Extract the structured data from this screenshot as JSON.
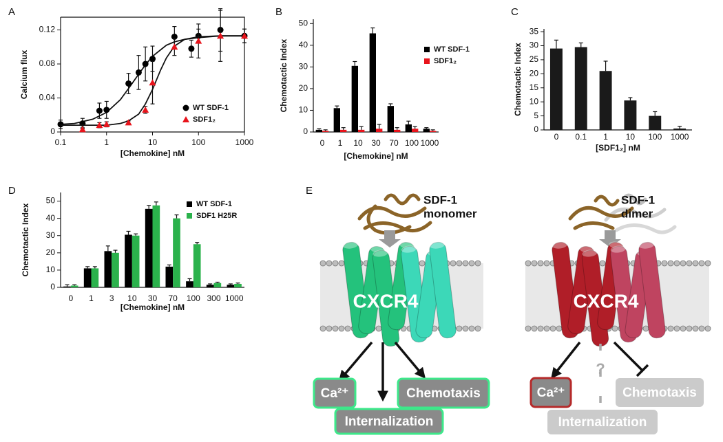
{
  "chart_data": [
    {
      "type": "scatter",
      "panel_label": "A",
      "y_label": "Calcium flux",
      "x_label": "[Chemokine] nM",
      "xscale": "log",
      "xlim": [
        0.1,
        1000
      ],
      "ylim": [
        0,
        0.135
      ],
      "xticks": [
        0.1,
        1,
        10,
        100,
        1000
      ],
      "yticks": [
        0,
        0.04,
        0.08,
        0.12
      ],
      "frame": true,
      "series": [
        {
          "name": "WT SDF-1",
          "color": "#000000",
          "marker": "circle",
          "x": [
            0.1,
            0.3,
            0.7,
            1,
            3,
            5,
            7,
            10,
            30,
            70,
            100,
            300,
            1000
          ],
          "values": [
            0.009,
            0.01,
            0.025,
            0.026,
            0.057,
            0.07,
            0.08,
            0.086,
            0.112,
            0.098,
            0.113,
            0.12,
            0.113
          ],
          "errors": [
            0.005,
            0.006,
            0.009,
            0.01,
            0.012,
            0.02,
            0.02,
            0.015,
            0.012,
            0.01,
            0.008,
            0.025,
            0.008
          ],
          "fit_x": [
            0.1,
            0.2,
            0.5,
            1,
            2,
            3,
            5,
            7,
            10,
            20,
            30,
            50,
            100,
            300,
            1000
          ],
          "fit_values": [
            0.009,
            0.01,
            0.015,
            0.023,
            0.038,
            0.051,
            0.068,
            0.079,
            0.089,
            0.102,
            0.106,
            0.109,
            0.111,
            0.113,
            0.113
          ]
        },
        {
          "name": "SDF1₂",
          "color": "#e8141c",
          "marker": "triangle",
          "x": [
            0.3,
            0.7,
            1,
            3,
            7,
            10,
            30,
            100,
            300,
            1000
          ],
          "values": [
            0.003,
            0.008,
            0.009,
            0.011,
            0.026,
            0.058,
            0.1,
            0.107,
            0.113,
            0.113
          ],
          "errors": [
            0.002,
            0.003,
            0.003,
            0.002,
            0.004,
            0.025,
            0.01,
            0.02,
            0.03,
            0.008
          ],
          "fit_x": [
            0.1,
            1,
            2,
            3,
            5,
            7,
            10,
            15,
            20,
            30,
            50,
            100,
            300,
            1000
          ],
          "fit_values": [
            0.008,
            0.008,
            0.01,
            0.013,
            0.021,
            0.033,
            0.05,
            0.073,
            0.087,
            0.101,
            0.109,
            0.112,
            0.113,
            0.113
          ]
        }
      ]
    },
    {
      "type": "bar",
      "panel_label": "B",
      "y_label": "Chemotactic Index",
      "x_label": "[Chemokine] nM",
      "categories": [
        "0",
        "1",
        "10",
        "30",
        "70",
        "100",
        "1000"
      ],
      "ylim": [
        0,
        52
      ],
      "yticks": [
        0,
        10,
        20,
        30,
        40,
        50
      ],
      "series": [
        {
          "name": "WT SDF-1",
          "color": "#000000",
          "values": [
            1,
            11,
            30.5,
            45.5,
            12,
            3.5,
            1.5
          ],
          "errors": [
            0.5,
            1,
            2,
            2.5,
            1,
            1.5,
            0.5
          ]
        },
        {
          "name": "SDF1₂",
          "color": "#e8141c",
          "values": [
            0.5,
            1,
            1,
            1.5,
            1,
            1.5,
            0.5
          ],
          "errors": [
            0.5,
            1,
            1.5,
            2,
            1,
            1,
            0.5
          ]
        }
      ]
    },
    {
      "type": "bar",
      "panel_label": "C",
      "y_label": "Chemotactic Index",
      "x_label": "[SDF1₂] nM",
      "categories": [
        "0",
        "0.1",
        "1",
        "10",
        "100",
        "1000"
      ],
      "ylim": [
        0,
        36
      ],
      "yticks": [
        0,
        5,
        10,
        15,
        20,
        25,
        30,
        35
      ],
      "color": "#1a1a1a",
      "values": [
        29,
        29.5,
        21,
        10.5,
        5,
        0.5
      ],
      "errors": [
        3,
        1.5,
        3.5,
        1,
        1.5,
        0.8
      ]
    },
    {
      "type": "bar",
      "panel_label": "D",
      "y_label": "Chemotactic Index",
      "x_label": "[Chemokine] nM",
      "categories": [
        "0",
        "1",
        "3",
        "10",
        "30",
        "70",
        "100",
        "300",
        "1000"
      ],
      "ylim": [
        0,
        55
      ],
      "yticks": [
        0,
        10,
        20,
        30,
        40,
        50
      ],
      "series": [
        {
          "name": "WT SDF-1",
          "color": "#000000",
          "values": [
            0.5,
            11,
            21,
            30.5,
            45.5,
            12,
            3.5,
            1.5,
            1.5
          ],
          "errors": [
            1,
            1,
            3,
            2,
            2,
            1,
            1.5,
            0.5,
            0.5
          ]
        },
        {
          "name": "SDF1 H25R",
          "color": "#2bb24c",
          "values": [
            1,
            11,
            20,
            30,
            47.5,
            40,
            25,
            2.5,
            2
          ],
          "errors": [
            0.5,
            1,
            1.5,
            1,
            2,
            2,
            1,
            0.5,
            0.5
          ]
        }
      ]
    }
  ],
  "diagram": {
    "label": "E",
    "left": {
      "ligand": [
        "SDF-1",
        "monomer"
      ],
      "receptor": "CXCR4",
      "outputs": [
        "Ca²⁺",
        "Chemotaxis",
        "Internalization"
      ]
    },
    "right": {
      "ligand": [
        "SDF-1",
        "dimer"
      ],
      "receptor": "CXCR4",
      "unknown": "?",
      "outputs": [
        "Ca²⁺",
        "Chemotaxis",
        "Internalization"
      ]
    }
  }
}
